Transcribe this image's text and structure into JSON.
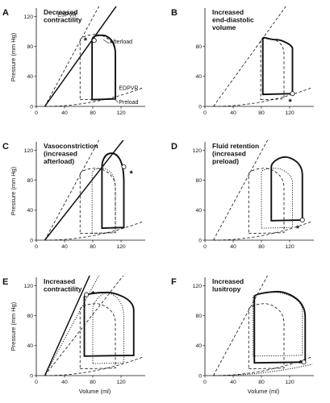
{
  "figure": {
    "axes": {
      "x_label": "Volume (ml)",
      "y_label": "Pressure (mm Hg)"
    },
    "curve_labels": {
      "espvr": "ESPVR",
      "edpvr": "EDPVR",
      "afterload": "Afterload",
      "preload": "Preload"
    },
    "star": "*"
  },
  "chart_data": [
    {
      "type": "line",
      "panel": "A",
      "title_lines": [
        "Decreased",
        "contractility"
      ],
      "xticks": [
        0,
        40,
        80,
        120
      ],
      "yticks": [
        0,
        40,
        80,
        120
      ],
      "xlim": [
        0,
        150
      ],
      "ylim": [
        0,
        125
      ],
      "espvr_control": {
        "v0": 12,
        "slope": 1.74
      },
      "espvr_new": {
        "v0": 12,
        "slope": 1.32
      },
      "edpvr": {
        "v0": 12,
        "p_at_120": 15
      },
      "loop_control": {
        "ed_volume": 112,
        "es_volume": 62,
        "ed_pressure": 10,
        "es_pressure": 88,
        "peak_pressure": 96
      },
      "loop_new": {
        "ed_volume": 112,
        "es_volume": 79,
        "ed_pressure": 10,
        "es_pressure": 88,
        "peak_pressure": 95
      },
      "star_marker": [
        82,
        88
      ]
    },
    {
      "type": "line",
      "panel": "B",
      "title_lines": [
        "Increased",
        "end-diastolic",
        "volume"
      ],
      "xticks": [
        0,
        40,
        80,
        120
      ],
      "yticks": [
        0,
        40,
        80
      ],
      "xlim": [
        0,
        150
      ],
      "ylim": [
        0,
        125
      ],
      "espvr_control": {
        "v0": 12,
        "slope": 1.3
      },
      "edpvr": {
        "v0": 12,
        "p_at_120": 15
      },
      "loop_control": {
        "ed_volume": 112,
        "es_volume": 79,
        "ed_pressure": 10,
        "es_pressure": 88,
        "peak_pressure": 90
      },
      "loop_new": {
        "ed_volume": 124,
        "es_volume": 82,
        "ed_pressure": 17,
        "es_pressure": 90,
        "peak_pressure": 89
      },
      "star_marker": [
        124,
        17
      ]
    },
    {
      "type": "line",
      "panel": "C",
      "title_lines": [
        "Vasoconstriction",
        "(increased",
        "afterload)"
      ],
      "xticks": [
        0,
        40,
        80,
        120
      ],
      "yticks": [
        0,
        40,
        80,
        120
      ],
      "xlim": [
        0,
        150
      ],
      "ylim": [
        0,
        125
      ],
      "espvr_control": {
        "v0": 12,
        "slope": 1.74
      },
      "espvr_new": {
        "v0": 12,
        "slope": 1.2
      },
      "edpvr": {
        "v0": 12,
        "p_at_120": 15
      },
      "loop_control": {
        "ed_volume": 112,
        "es_volume": 62,
        "ed_pressure": 10,
        "es_pressure": 88,
        "peak_pressure": 96
      },
      "loop_mid": {
        "ed_volume": 112,
        "es_volume": 79,
        "ed_pressure": 10,
        "es_pressure": 88,
        "peak_pressure": 96
      },
      "loop_new": {
        "ed_volume": 124,
        "es_volume": 93,
        "ed_pressure": 17,
        "es_pressure": 98,
        "peak_pressure": 116
      },
      "star_marker": [
        124,
        98
      ]
    },
    {
      "type": "line",
      "panel": "D",
      "title_lines": [
        "Fluid retention",
        "(increased",
        "preload)"
      ],
      "xticks": [
        0,
        40,
        80,
        120
      ],
      "yticks": [
        0,
        40,
        80,
        120
      ],
      "xlim": [
        0,
        150
      ],
      "ylim": [
        0,
        125
      ],
      "espvr_control": {
        "v0": 12,
        "slope": 1.74
      },
      "edpvr": {
        "v0": 12,
        "p_at_120": 15
      },
      "loop_control": {
        "ed_volume": 112,
        "es_volume": 62,
        "ed_pressure": 10,
        "es_pressure": 88,
        "peak_pressure": 96
      },
      "loop_mid": {
        "ed_volume": 124,
        "es_volume": 80,
        "ed_pressure": 17,
        "es_pressure": 90,
        "peak_pressure": 96
      },
      "loop_new": {
        "ed_volume": 138,
        "es_volume": 94,
        "ed_pressure": 27,
        "es_pressure": 98,
        "peak_pressure": 111
      },
      "star_marker": [
        138,
        27
      ]
    },
    {
      "type": "line",
      "panel": "E",
      "title_lines": [
        "Increased",
        "contractility"
      ],
      "xticks": [
        0,
        40,
        80,
        120
      ],
      "yticks": [
        0,
        40,
        80,
        120
      ],
      "xlim": [
        0,
        150
      ],
      "ylim": [
        0,
        125
      ],
      "espvr_control": {
        "v0": 12,
        "slope": 1.2
      },
      "espvr_mid": {
        "v0": 12,
        "slope": 1.74
      },
      "espvr_new": {
        "v0": 12,
        "slope": 2.1
      },
      "edpvr": {
        "v0": 12,
        "p_at_120": 15
      },
      "loop_control": {
        "ed_volume": 112,
        "es_volume": 62,
        "ed_pressure": 10,
        "es_pressure": 88,
        "peak_pressure": 96
      },
      "loop_mid": {
        "ed_volume": 124,
        "es_volume": 80,
        "ed_pressure": 17,
        "es_pressure": 90,
        "peak_pressure": 110
      },
      "loop_new": {
        "ed_volume": 138,
        "es_volume": 68,
        "ed_pressure": 27,
        "es_pressure": 105,
        "peak_pressure": 111
      },
      "star_marker": [
        71,
        108
      ]
    },
    {
      "type": "line",
      "panel": "F",
      "title_lines": [
        "Increased",
        "lusitropy"
      ],
      "xticks": [
        0,
        40,
        80,
        120
      ],
      "yticks": [
        0,
        40,
        80,
        120
      ],
      "xlim": [
        0,
        150
      ],
      "ylim": [
        0,
        125
      ],
      "espvr_control": {
        "v0": 12,
        "slope": 1.74
      },
      "edpvr": {
        "v0": 12,
        "p_at_120": 15
      },
      "edpvr_new": {
        "v0": 12,
        "p_at_120": 9
      },
      "loop_control": {
        "ed_volume": 112,
        "es_volume": 62,
        "ed_pressure": 10,
        "es_pressure": 88,
        "peak_pressure": 96
      },
      "loop_mid": {
        "ed_volume": 138,
        "es_volume": 68,
        "ed_pressure": 27,
        "es_pressure": 105,
        "peak_pressure": 111
      },
      "loop_new": {
        "ed_volume": 142,
        "es_volume": 70,
        "ed_pressure": 18,
        "es_pressure": 105,
        "peak_pressure": 112
      },
      "star_marker": [
        140,
        18
      ]
    }
  ]
}
